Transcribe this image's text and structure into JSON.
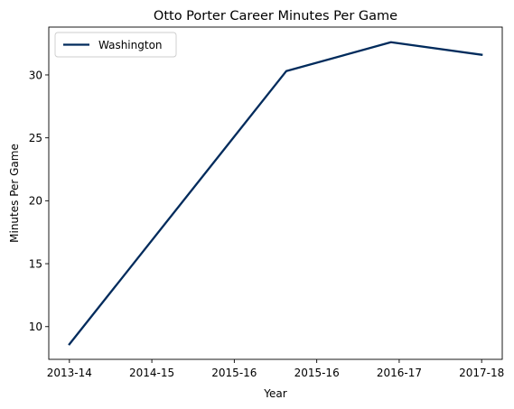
{
  "chart_data": {
    "type": "line",
    "title": "Otto Porter Career Minutes Per Game",
    "xlabel": "Year",
    "ylabel": "Minutes Per Game",
    "categories": [
      "2013-14",
      "2014-15",
      "2015-16",
      "2015-16",
      "2016-17",
      "2017-18"
    ],
    "series": [
      {
        "name": "Washington",
        "color": "#002B5C",
        "x": [
          0,
          2.63,
          3.9,
          5
        ],
        "values": [
          8.6,
          30.3,
          32.6,
          31.6
        ]
      }
    ],
    "xlim": [
      -0.25,
      5.25
    ],
    "ylim": [
      7.4,
      33.8
    ],
    "yticks": [
      10,
      15,
      20,
      25,
      30
    ],
    "grid": false,
    "legend": "top-left"
  }
}
